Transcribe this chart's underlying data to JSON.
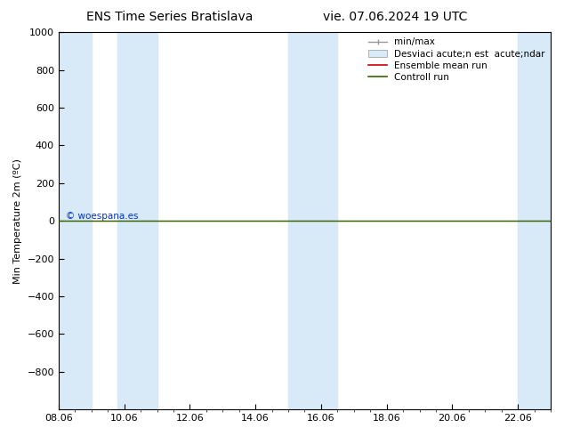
{
  "title": "ENS Time Series Bratislava",
  "title2": "vie. 07.06.2024 19 UTC",
  "ylabel": "Min Temperature 2m (ºC)",
  "xlabel": "",
  "xlim_labels": [
    "08.06",
    "10.06",
    "12.06",
    "14.06",
    "16.06",
    "18.06",
    "20.06",
    "22.06"
  ],
  "xlim": [
    0,
    15
  ],
  "ylim_top": -1000,
  "ylim_bottom": 1000,
  "yticks": [
    -800,
    -600,
    -400,
    -200,
    0,
    200,
    400,
    600,
    800,
    1000
  ],
  "bg_color": "#ffffff",
  "plot_bg_color": "#ffffff",
  "shaded_bands": [
    [
      0.0,
      1.0
    ],
    [
      1.8,
      3.0
    ],
    [
      7.0,
      8.5
    ],
    [
      14.0,
      15.0
    ]
  ],
  "shade_color": "#d8eaf8",
  "horizontal_line_y": 0,
  "green_line_color": "#336600",
  "red_line_color": "#cc0000",
  "gray_line_color": "#999999",
  "legend_label_minmax": "min/max",
  "legend_label_std": "Desviaci acute;n est  acute;ndar",
  "legend_label_ens": "Ensemble mean run",
  "legend_label_ctrl": "Controll run",
  "watermark": "© woespana.es",
  "watermark_color": "#0033cc",
  "title_fontsize": 10,
  "axis_fontsize": 8,
  "tick_fontsize": 8,
  "legend_fontsize": 7.5
}
